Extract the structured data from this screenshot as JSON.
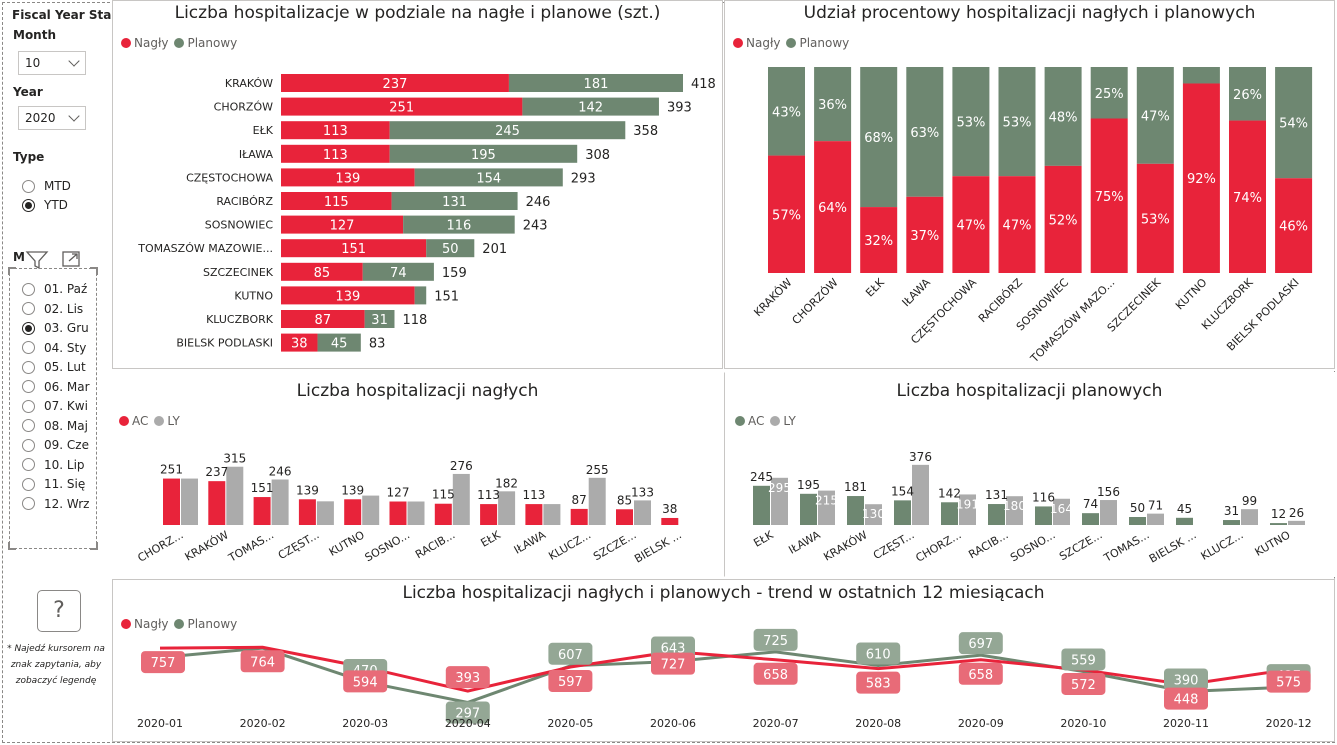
{
  "colors": {
    "nagly": "#e8233a",
    "planowy": "#6e8771",
    "ly": "#ababab",
    "label_dark": "#252423",
    "trend_badge_red": "#e86b78",
    "trend_badge_green": "#94a795"
  },
  "filters": {
    "fiscal_year_start": "Fiscal Year Start",
    "month_label": "Month",
    "month_value": "10",
    "year_label": "Year",
    "year_value": "2020",
    "type_label": "Type",
    "type_options": [
      {
        "label": "MTD",
        "selected": false
      },
      {
        "label": "YTD",
        "selected": true
      }
    ],
    "month_slicer_header": "M",
    "month_slicer_icons": [
      "filter-icon",
      "focus-mode-icon"
    ],
    "months": [
      {
        "label": "01. Paź",
        "selected": false
      },
      {
        "label": "02. Lis",
        "selected": false
      },
      {
        "label": "03. Gru",
        "selected": true
      },
      {
        "label": "04. Sty",
        "selected": false
      },
      {
        "label": "05. Lut",
        "selected": false
      },
      {
        "label": "06. Mar",
        "selected": false
      },
      {
        "label": "07. Kwi",
        "selected": false
      },
      {
        "label": "08. Maj",
        "selected": false
      },
      {
        "label": "09. Cze",
        "selected": false
      },
      {
        "label": "10. Lip",
        "selected": false
      },
      {
        "label": "11. Się",
        "selected": false
      },
      {
        "label": "12. Wrz",
        "selected": false
      }
    ],
    "help_button": "?",
    "help_note": "* Najedź kursorem na znak zapytania, aby zobaczyć legendę"
  },
  "chart_data": [
    {
      "id": "stacked-hbar",
      "type": "bar",
      "orientation": "horizontal",
      "stacked": true,
      "title": "Liczba hospitalizacje w podziale na nagłe i planowe (szt.)",
      "legend": [
        "Nagły",
        "Planowy"
      ],
      "categories": [
        "KRAKÓW",
        "CHORZÓW",
        "EŁK",
        "IŁAWA",
        "CZĘSTOCHOWA",
        "RACIBÓRZ",
        "SOSNOWIEC",
        "TOMASZÓW MAZOWIE...",
        "SZCZECINEK",
        "KUTNO",
        "KLUCZBORK",
        "BIELSK PODLASKI"
      ],
      "series": [
        {
          "name": "Nagły",
          "values": [
            237,
            251,
            113,
            113,
            139,
            115,
            127,
            151,
            85,
            139,
            87,
            38
          ]
        },
        {
          "name": "Planowy",
          "values": [
            181,
            142,
            245,
            195,
            154,
            131,
            116,
            50,
            74,
            12,
            31,
            45
          ]
        }
      ],
      "totals": [
        418,
        393,
        358,
        308,
        293,
        246,
        243,
        201,
        159,
        151,
        118,
        83
      ]
    },
    {
      "id": "percent-column",
      "type": "bar",
      "stacked": true,
      "percent": true,
      "title": "Udział procentowy hospitalizacji nagłych i planowych",
      "legend": [
        "Nagły",
        "Planowy"
      ],
      "categories": [
        "KRAKÓW",
        "CHORZÓW",
        "EŁK",
        "IŁAWA",
        "CZĘSTOCHOWA",
        "RACIBÓRZ",
        "SOSNOWIEC",
        "TOMASZÓW MAZO...",
        "SZCZECINEK",
        "KUTNO",
        "KLUCZBORK",
        "BIELSK PODLASKI"
      ],
      "series": [
        {
          "name": "Nagły",
          "values": [
            57,
            64,
            32,
            37,
            47,
            47,
            52,
            75,
            53,
            92,
            74,
            46
          ],
          "labels": [
            "57%",
            "64%",
            "32%",
            "37%",
            "47%",
            "47%",
            "52%",
            "75%",
            "53%",
            "92%",
            "74%",
            "46%"
          ]
        },
        {
          "name": "Planowy",
          "values": [
            43,
            36,
            68,
            63,
            53,
            53,
            48,
            25,
            47,
            8,
            26,
            54
          ],
          "labels": [
            "43%",
            "36%",
            "68%",
            "63%",
            "53%",
            "53%",
            "48%",
            "25%",
            "47%",
            "",
            "26%",
            "54%"
          ]
        }
      ]
    },
    {
      "id": "nagle-column",
      "type": "bar",
      "title": "Liczba hospitalizacji nagłych",
      "legend": [
        "AC",
        "LY"
      ],
      "categories": [
        "CHORZ...",
        "KRAKÓW",
        "TOMAS...",
        "CZĘST...",
        "KUTNO",
        "SOSNO...",
        "RACIB...",
        "EŁK",
        "IŁAWA",
        "KLUCZ...",
        "SZCZE...",
        "BIELSK ..."
      ],
      "series": [
        {
          "name": "AC",
          "values": [
            251,
            237,
            151,
            139,
            139,
            127,
            115,
            113,
            113,
            87,
            85,
            38
          ]
        },
        {
          "name": "LY",
          "values": [
            251,
            315,
            246,
            128,
            159,
            127,
            276,
            182,
            113,
            255,
            133,
            null
          ]
        }
      ],
      "labels_ac": [
        "251",
        "237",
        "151",
        "139",
        "139",
        "127",
        "115",
        "113",
        "113",
        "87",
        "85",
        "38"
      ],
      "labels_ly": [
        "",
        "315",
        "246",
        "",
        "",
        "",
        "276",
        "182",
        "",
        "255",
        "133",
        ""
      ]
    },
    {
      "id": "planowe-column",
      "type": "bar",
      "title": "Liczba hospitalizacji planowych",
      "legend": [
        "AC",
        "LY"
      ],
      "categories": [
        "EŁK",
        "IŁAWA",
        "KRAKÓW",
        "CZĘST...",
        "CHORZ...",
        "RACIB...",
        "SOSNO...",
        "SZCZE...",
        "TOMAS...",
        "BIELSK ...",
        "KLUCZ...",
        "KUTNO"
      ],
      "series": [
        {
          "name": "AC",
          "values": [
            245,
            195,
            181,
            154,
            142,
            131,
            116,
            74,
            50,
            45,
            31,
            12
          ]
        },
        {
          "name": "LY",
          "values": [
            295,
            215,
            130,
            376,
            191,
            180,
            164,
            156,
            71,
            null,
            99,
            26
          ]
        }
      ],
      "labels_ac": [
        "245",
        "195",
        "181",
        "154",
        "142",
        "131",
        "116",
        "74",
        "50",
        "45",
        "31",
        "12"
      ],
      "labels_ly": [
        "295",
        "215",
        "130",
        "376",
        "191",
        "180",
        "164",
        "156",
        "71",
        "",
        "99",
        "26"
      ]
    },
    {
      "id": "trend-line",
      "type": "line",
      "title": "Liczba hospitalizacji nagłych i planowych - trend w ostatnich 12 miesiącach",
      "legend": [
        "Nagły",
        "Planowy"
      ],
      "x": [
        "2020-01",
        "2020-02",
        "2020-03",
        "2020-04",
        "2020-05",
        "2020-06",
        "2020-07",
        "2020-08",
        "2020-09",
        "2020-10",
        "2020-11",
        "2020-12"
      ],
      "series": [
        {
          "name": "Nagły",
          "values": [
            757,
            764,
            594,
            393,
            597,
            727,
            658,
            583,
            658,
            572,
            448,
            575
          ]
        },
        {
          "name": "Planowy",
          "values": [
            677,
            757,
            470,
            297,
            607,
            643,
            725,
            610,
            697,
            559,
            390,
            427
          ]
        }
      ],
      "labels_nagly": [
        "757",
        "764",
        "594",
        "393",
        "597",
        "727",
        "658",
        "583",
        "658",
        "572",
        "448",
        "575"
      ],
      "labels_planowy": [
        "",
        "",
        "470",
        "297",
        "607",
        "643",
        "725",
        "610",
        "697",
        "559",
        "390",
        "427"
      ]
    }
  ]
}
